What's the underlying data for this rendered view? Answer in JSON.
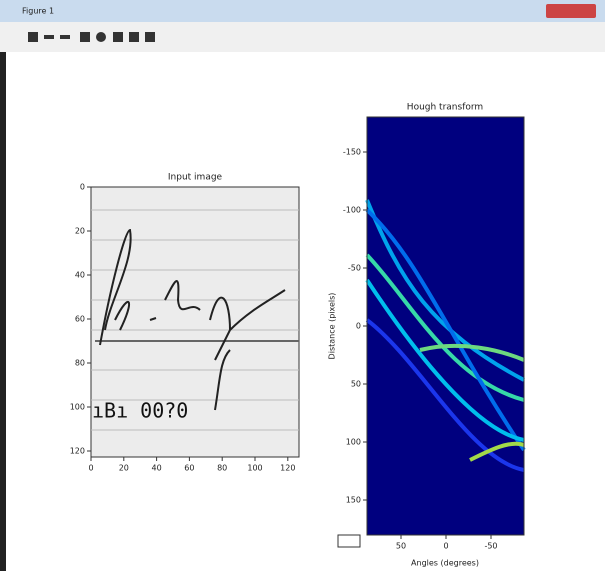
{
  "window": {
    "title": "Figure 1"
  },
  "left": {
    "title": "Input image",
    "xticks": [
      0,
      20,
      40,
      60,
      80,
      100,
      120
    ],
    "yticks": [
      0,
      20,
      40,
      60,
      80,
      100,
      120
    ]
  },
  "right": {
    "title": "Hough transform",
    "xlabel": "Angles (degrees)",
    "ylabel": "Distance (pixels)",
    "xticks": [
      50,
      0,
      -50
    ],
    "yticks": [
      -150,
      -100,
      -50,
      0,
      50,
      100,
      150
    ]
  }
}
